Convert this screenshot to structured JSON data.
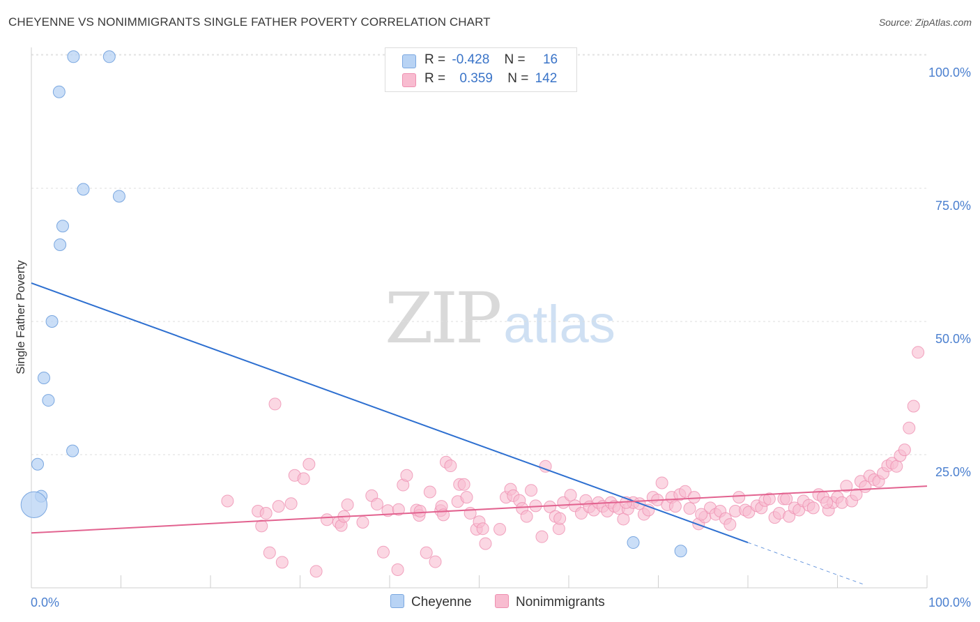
{
  "title": "CHEYENNE VS NONIMMIGRANTS SINGLE FATHER POVERTY CORRELATION CHART",
  "source": "Source: ZipAtlas.com",
  "watermark": {
    "zip": "ZIP",
    "atlas": "atlas"
  },
  "legend": {
    "cheyenne": {
      "r_label": "R =",
      "r_value": "-0.428",
      "n_label": "N =",
      "n_value": "16"
    },
    "nonimmigrants": {
      "r_label": "R =",
      "r_value": "0.359",
      "n_label": "N =",
      "n_value": "142"
    }
  },
  "bottom_legend": {
    "cheyenne": "Cheyenne",
    "nonimmigrants": "Nonimmigrants"
  },
  "chart_data": {
    "type": "scatter",
    "ylabel": "Single Father Poverty",
    "xlim": [
      0,
      100
    ],
    "ylim": [
      0,
      100
    ],
    "x_tick_labels": [
      "0.0%",
      "100.0%"
    ],
    "y_tick_labels": [
      "25.0%",
      "50.0%",
      "75.0%",
      "100.0%"
    ],
    "y_ticks": [
      25,
      50,
      75,
      100
    ],
    "grid": true,
    "colors": {
      "cheyenne_fill": "#b8d3f4",
      "cheyenne_stroke": "#7aa7e0",
      "cheyenne_line": "#2d6fd0",
      "nonimmigrants_fill": "#f8bcd0",
      "nonimmigrants_stroke": "#ee8fb0",
      "nonimmigrants_line": "#e2628f"
    },
    "series": [
      {
        "name": "Cheyenne",
        "trend": {
          "x": [
            0,
            80
          ],
          "y": [
            57.2,
            8.5
          ],
          "dash_to": [
            93,
            0.6
          ]
        },
        "points": [
          [
            4.7,
            99.7
          ],
          [
            8.7,
            99.7
          ],
          [
            3.1,
            93.1
          ],
          [
            5.8,
            74.8
          ],
          [
            9.8,
            73.5
          ],
          [
            3.5,
            67.9
          ],
          [
            3.2,
            64.4
          ],
          [
            2.3,
            50.0
          ],
          [
            1.4,
            39.4
          ],
          [
            1.9,
            35.2
          ],
          [
            4.6,
            25.7
          ],
          [
            0.7,
            23.2
          ],
          [
            1.1,
            17.2
          ],
          [
            0.3,
            15.6
          ],
          [
            67.2,
            8.5
          ],
          [
            72.5,
            6.9
          ]
        ],
        "sizes": [
          1,
          1,
          1,
          1,
          1,
          1,
          1,
          1,
          1,
          1,
          1,
          1,
          1,
          2.2,
          1,
          1
        ]
      },
      {
        "name": "Nonimmigrants",
        "trend": {
          "x": [
            0,
            100
          ],
          "y": [
            10.3,
            19.1
          ]
        },
        "points": [
          [
            21.9,
            16.3
          ],
          [
            25.3,
            14.4
          ],
          [
            25.7,
            11.6
          ],
          [
            26.2,
            14.0
          ],
          [
            26.6,
            6.6
          ],
          [
            27.2,
            34.5
          ],
          [
            27.6,
            15.3
          ],
          [
            28.0,
            4.8
          ],
          [
            29.0,
            15.8
          ],
          [
            29.4,
            21.1
          ],
          [
            30.4,
            20.5
          ],
          [
            31.0,
            23.2
          ],
          [
            31.8,
            3.1
          ],
          [
            33.0,
            12.8
          ],
          [
            34.3,
            12.3
          ],
          [
            34.6,
            11.7
          ],
          [
            34.9,
            13.4
          ],
          [
            35.3,
            15.6
          ],
          [
            37.0,
            12.3
          ],
          [
            38.0,
            17.3
          ],
          [
            38.6,
            15.7
          ],
          [
            39.3,
            6.7
          ],
          [
            39.8,
            14.5
          ],
          [
            40.9,
            3.4
          ],
          [
            41.0,
            14.7
          ],
          [
            41.5,
            19.3
          ],
          [
            41.9,
            21.1
          ],
          [
            43.0,
            14.6
          ],
          [
            43.3,
            13.6
          ],
          [
            43.4,
            14.4
          ],
          [
            44.1,
            6.6
          ],
          [
            44.5,
            18.0
          ],
          [
            45.1,
            4.9
          ],
          [
            45.7,
            14.5
          ],
          [
            45.8,
            15.3
          ],
          [
            46.0,
            13.7
          ],
          [
            46.3,
            23.6
          ],
          [
            46.8,
            22.9
          ],
          [
            47.6,
            16.2
          ],
          [
            47.8,
            19.4
          ],
          [
            48.3,
            19.4
          ],
          [
            48.6,
            17.0
          ],
          [
            49.0,
            14.0
          ],
          [
            49.7,
            11.0
          ],
          [
            50.0,
            12.4
          ],
          [
            50.4,
            11.1
          ],
          [
            50.7,
            8.3
          ],
          [
            52.3,
            11.0
          ],
          [
            53.0,
            17.0
          ],
          [
            53.5,
            18.5
          ],
          [
            53.8,
            17.3
          ],
          [
            54.5,
            16.4
          ],
          [
            54.8,
            14.9
          ],
          [
            55.3,
            13.4
          ],
          [
            55.8,
            18.3
          ],
          [
            56.3,
            15.4
          ],
          [
            57.0,
            9.6
          ],
          [
            57.4,
            22.8
          ],
          [
            57.9,
            15.2
          ],
          [
            58.5,
            13.4
          ],
          [
            58.9,
            11.1
          ],
          [
            59.4,
            16.0
          ],
          [
            60.2,
            17.4
          ],
          [
            60.7,
            15.4
          ],
          [
            61.4,
            14.0
          ],
          [
            61.9,
            16.4
          ],
          [
            62.3,
            15.2
          ],
          [
            62.8,
            14.6
          ],
          [
            63.3,
            16.0
          ],
          [
            63.8,
            15.3
          ],
          [
            64.3,
            14.4
          ],
          [
            64.7,
            16.0
          ],
          [
            65.1,
            15.3
          ],
          [
            65.6,
            14.9
          ],
          [
            66.1,
            12.9
          ],
          [
            66.6,
            14.8
          ],
          [
            67.2,
            16.0
          ],
          [
            67.9,
            15.8
          ],
          [
            68.4,
            13.8
          ],
          [
            68.9,
            14.6
          ],
          [
            69.4,
            17.0
          ],
          [
            69.9,
            16.5
          ],
          [
            70.4,
            19.7
          ],
          [
            71.0,
            15.6
          ],
          [
            71.5,
            17.0
          ],
          [
            71.9,
            15.3
          ],
          [
            72.4,
            17.5
          ],
          [
            73.0,
            18.1
          ],
          [
            73.5,
            14.9
          ],
          [
            74.0,
            17.0
          ],
          [
            74.5,
            12.0
          ],
          [
            75.2,
            13.3
          ],
          [
            75.8,
            15.0
          ],
          [
            76.4,
            13.8
          ],
          [
            76.9,
            14.4
          ],
          [
            77.5,
            13.0
          ],
          [
            78.0,
            11.9
          ],
          [
            78.6,
            14.4
          ],
          [
            79.0,
            17.0
          ],
          [
            79.7,
            14.6
          ],
          [
            80.1,
            14.2
          ],
          [
            81.0,
            15.4
          ],
          [
            81.5,
            15.0
          ],
          [
            81.9,
            16.4
          ],
          [
            82.4,
            16.7
          ],
          [
            83.0,
            13.2
          ],
          [
            83.5,
            14.0
          ],
          [
            84.0,
            16.7
          ],
          [
            84.6,
            13.4
          ],
          [
            85.2,
            15.0
          ],
          [
            85.7,
            14.6
          ],
          [
            86.2,
            16.3
          ],
          [
            86.8,
            15.5
          ],
          [
            87.3,
            15.0
          ],
          [
            87.9,
            17.5
          ],
          [
            88.4,
            17.0
          ],
          [
            89.0,
            14.6
          ],
          [
            89.5,
            16.0
          ],
          [
            90.0,
            17.0
          ],
          [
            90.5,
            16.0
          ],
          [
            91.0,
            19.1
          ],
          [
            91.6,
            16.3
          ],
          [
            92.1,
            17.5
          ],
          [
            92.6,
            20.0
          ],
          [
            93.1,
            19.0
          ],
          [
            93.6,
            21.0
          ],
          [
            94.1,
            20.3
          ],
          [
            94.6,
            20.0
          ],
          [
            95.1,
            21.5
          ],
          [
            95.6,
            22.9
          ],
          [
            96.1,
            23.4
          ],
          [
            96.6,
            22.8
          ],
          [
            97.0,
            24.8
          ],
          [
            97.5,
            25.9
          ],
          [
            98.0,
            30.0
          ],
          [
            98.5,
            34.1
          ],
          [
            99.0,
            44.2
          ],
          [
            84.3,
            16.7
          ],
          [
            88.8,
            16.0
          ],
          [
            74.8,
            13.8
          ],
          [
            66.4,
            16.0
          ],
          [
            59.0,
            13.0
          ]
        ]
      }
    ]
  }
}
